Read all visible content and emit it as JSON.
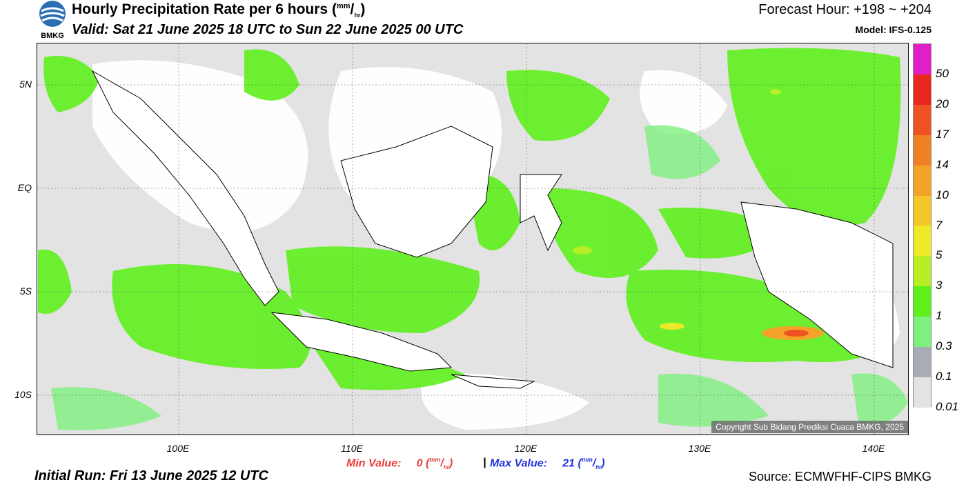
{
  "header": {
    "title": "Hourly Precipitation Rate per 6 hours",
    "title_unit": "(mm/hr)",
    "valid": "Valid: Sat 21 June 2025 18 UTC to Sun 22 June 2025 00 UTC",
    "forecast_hour": "Forecast Hour: +198 ~ +204",
    "model": "Model: IFS-0.125",
    "logo_text": "BMKG"
  },
  "map": {
    "lat_labels": [
      "5N",
      "EQ",
      "5S",
      "10S"
    ],
    "lon_labels": [
      "100E",
      "110E",
      "120E",
      "130E",
      "140E"
    ],
    "copyright": "Copyright Sub Bidang Prediksi Cuaca BMKG, 2025"
  },
  "colorbar": {
    "labels": [
      "50",
      "20",
      "17",
      "14",
      "10",
      "7",
      "5",
      "3",
      "1",
      "0.3",
      "0.1",
      "0.01"
    ],
    "colors": [
      "#e01fc8",
      "#e8281f",
      "#ee5222",
      "#f08025",
      "#f3a428",
      "#f4c62a",
      "#eeea27",
      "#b7ee26",
      "#5ef01c",
      "#7ef07e",
      "#a8acb4",
      "#e3e3e3"
    ]
  },
  "footer": {
    "min_label": "Min Value:",
    "min_value": "0",
    "max_label": "Max Value:",
    "max_value": "21",
    "unit": "(mm/hr)",
    "separator": "|",
    "initial_run": "Initial Run: Fri 13 June 2025 12 UTC",
    "source": "Source: ECMWFHF-CIPS BMKG"
  }
}
